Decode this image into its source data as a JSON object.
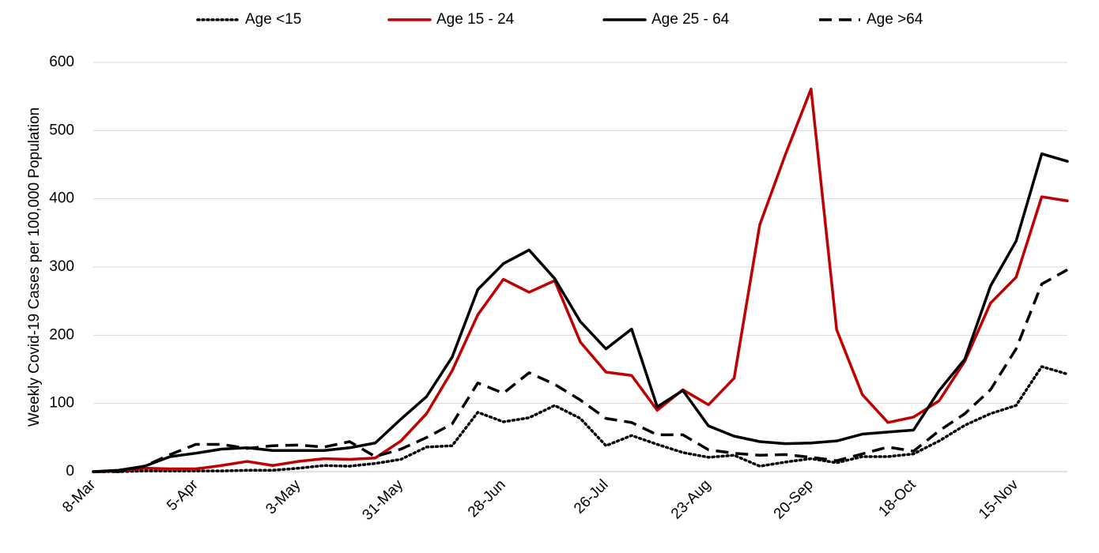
{
  "chart_data": {
    "type": "line",
    "y_label": "Weekly Covid-19 Cases per 100,000 Population",
    "categories": [
      "8-Mar",
      null,
      null,
      null,
      "5-Apr",
      null,
      null,
      null,
      "3-May",
      null,
      null,
      null,
      "31-May",
      null,
      null,
      null,
      "28-Jun",
      null,
      null,
      null,
      "26-Jul",
      null,
      null,
      null,
      "23-Aug",
      null,
      null,
      null,
      "20-Sep",
      null,
      null,
      null,
      "18-Oct",
      null,
      null,
      null,
      "15-Nov",
      null,
      null
    ],
    "series": [
      {
        "name": "Age <15",
        "color": "#000000",
        "dash": "dotted",
        "values": [
          0,
          0,
          1,
          1,
          1,
          1,
          2,
          2,
          5,
          9,
          8,
          12,
          18,
          36,
          38,
          87,
          73,
          79,
          97,
          78,
          38,
          53,
          40,
          28,
          21,
          24,
          8,
          14,
          19,
          13,
          22,
          22,
          26,
          45,
          68,
          85,
          97,
          154,
          143
        ]
      },
      {
        "name": "Age 15 - 24",
        "color": "#c00000",
        "dash": "solid",
        "values": [
          0,
          1,
          5,
          4,
          4,
          9,
          15,
          9,
          15,
          19,
          18,
          20,
          45,
          85,
          148,
          230,
          282,
          263,
          280,
          190,
          146,
          141,
          90,
          120,
          98,
          137,
          362,
          465,
          561,
          208,
          113,
          72,
          80,
          104,
          162,
          247,
          285,
          403,
          397
        ]
      },
      {
        "name": "Age 25 - 64",
        "color": "#000000",
        "dash": "solid",
        "values": [
          0,
          2,
          8,
          22,
          27,
          33,
          35,
          31,
          31,
          31,
          35,
          42,
          77,
          110,
          168,
          267,
          305,
          325,
          283,
          220,
          180,
          209,
          95,
          119,
          67,
          52,
          44,
          41,
          42,
          45,
          55,
          58,
          61,
          119,
          165,
          272,
          338,
          466,
          455
        ]
      },
      {
        "name": "Age >64",
        "color": "#000000",
        "dash": "dashed",
        "values": [
          0,
          0,
          8,
          25,
          40,
          40,
          34,
          38,
          39,
          36,
          44,
          22,
          33,
          50,
          70,
          130,
          115,
          145,
          128,
          105,
          78,
          72,
          54,
          54,
          32,
          27,
          24,
          25,
          21,
          16,
          26,
          36,
          30,
          60,
          85,
          120,
          180,
          275,
          296
        ]
      }
    ],
    "ylim": [
      0,
      600
    ],
    "yticks": [
      0,
      100,
      200,
      300,
      400,
      500,
      600
    ],
    "grid": true,
    "legend": "top"
  }
}
